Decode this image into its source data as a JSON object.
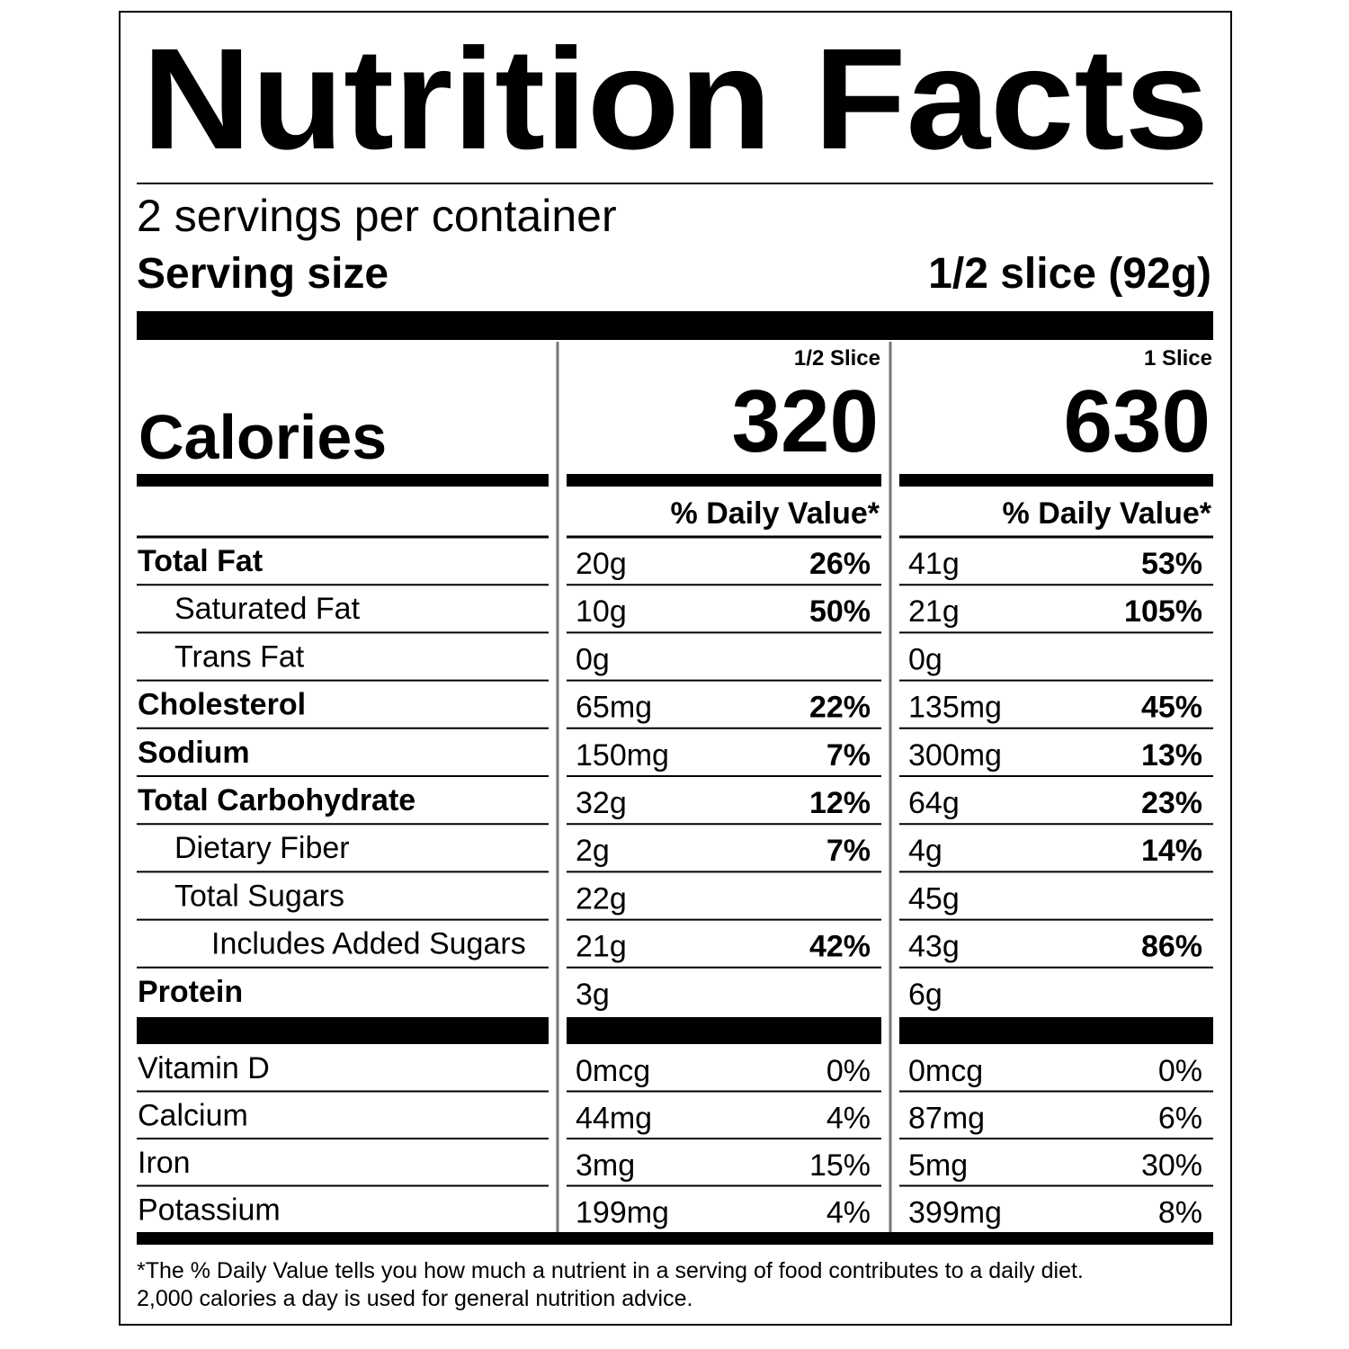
{
  "title": "Nutrition Facts",
  "servings_per_container": "2 servings per container",
  "serving_size": {
    "label": "Serving size",
    "value": "1/2 slice (92g)"
  },
  "calories_label": "Calories",
  "columns": [
    {
      "header": "1/2 Slice",
      "calories": 320
    },
    {
      "header": "1 Slice",
      "calories": 630
    }
  ],
  "daily_value_header": "% Daily Value*",
  "nutrients": [
    {
      "name": "Total Fat",
      "amounts": [
        "20g",
        "41g"
      ],
      "daily_values": [
        "26%",
        "53%"
      ]
    },
    {
      "name": "Saturated Fat",
      "amounts": [
        "10g",
        "21g"
      ],
      "daily_values": [
        "50%",
        "105%"
      ]
    },
    {
      "name": "Trans Fat",
      "amounts": [
        "0g",
        "0g"
      ]
    },
    {
      "name": "Cholesterol",
      "amounts": [
        "65mg",
        "135mg"
      ],
      "daily_values": [
        "22%",
        "45%"
      ]
    },
    {
      "name": "Sodium",
      "amounts": [
        "150mg",
        "300mg"
      ],
      "daily_values": [
        "7%",
        "13%"
      ]
    },
    {
      "name": "Total Carbohydrate",
      "amounts": [
        "32g",
        "64g"
      ],
      "daily_values": [
        "12%",
        "23%"
      ]
    },
    {
      "name": "Dietary Fiber",
      "amounts": [
        "2g",
        "4g"
      ],
      "daily_values": [
        "7%",
        "14%"
      ]
    },
    {
      "name": "Total Sugars",
      "amounts": [
        "22g",
        "45g"
      ]
    },
    {
      "name": "Includes Added Sugars",
      "amounts": [
        "21g",
        "43g"
      ],
      "daily_values": [
        "42%",
        "86%"
      ]
    },
    {
      "name": "Protein",
      "amounts": [
        "3g",
        "6g"
      ]
    }
  ],
  "vitamins": [
    {
      "name": "Vitamin D",
      "amounts": [
        "0mcg",
        "0mcg"
      ],
      "daily_values": [
        "0%",
        "0%"
      ]
    },
    {
      "name": "Calcium",
      "amounts": [
        "44mg",
        "87mg"
      ],
      "daily_values": [
        "4%",
        "6%"
      ]
    },
    {
      "name": "Iron",
      "amounts": [
        "3mg",
        "5mg"
      ],
      "daily_values": [
        "15%",
        "30%"
      ]
    },
    {
      "name": "Potassium",
      "amounts": [
        "199mg",
        "399mg"
      ],
      "daily_values": [
        "4%",
        "8%"
      ]
    }
  ],
  "footnote": [
    "*The % Daily Value tells you how much a nutrient in a serving of food contributes to a daily diet.",
    "2,000 calories a day is used for general nutrition advice."
  ]
}
